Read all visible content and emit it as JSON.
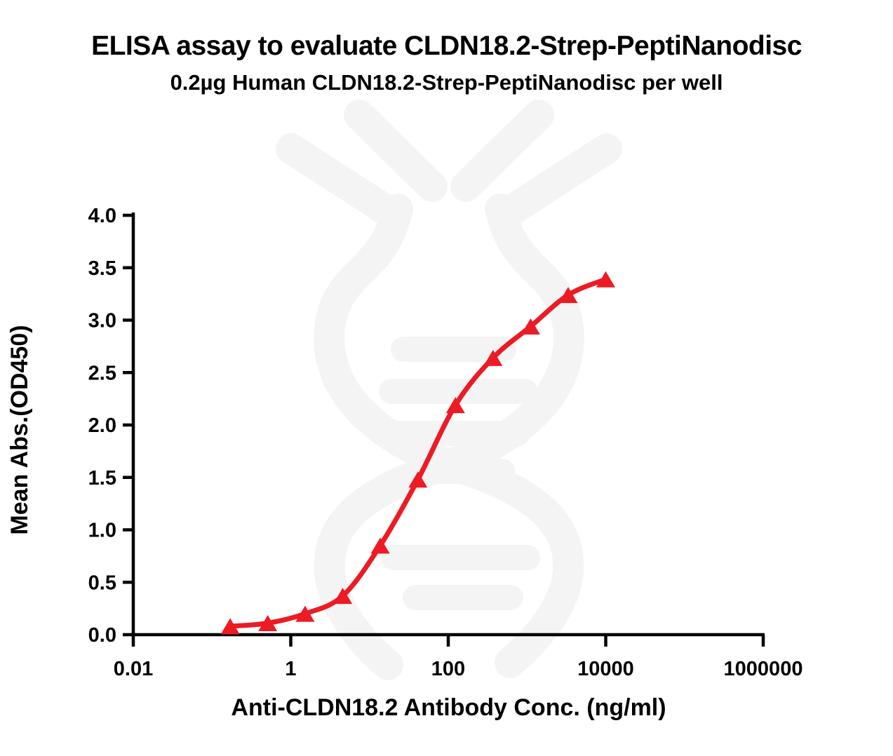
{
  "title": "ELISA assay to evaluate CLDN18.2-Strep-PeptiNanodisc",
  "subtitle": "0.2µg Human CLDN18.2-Strep-PeptiNanodisc per well",
  "chart_data": {
    "type": "scatter",
    "title": "ELISA assay to evaluate CLDN18.2-Strep-PeptiNanodisc",
    "subtitle": "0.2µg Human CLDN18.2-Strep-PeptiNanodisc per well",
    "xlabel": "Anti-CLDN18.2 Antibody Conc. (ng/ml)",
    "ylabel": "Mean Abs.(OD450)",
    "x_scale": "log10",
    "xlim": [
      0.01,
      1000000
    ],
    "ylim": [
      0.0,
      4.0
    ],
    "grid": false,
    "legend": "none",
    "x_ticks": [
      {
        "value": 0.01,
        "label": "0.01"
      },
      {
        "value": 1,
        "label": "1"
      },
      {
        "value": 100,
        "label": "100"
      },
      {
        "value": 10000,
        "label": "10000"
      },
      {
        "value": 1000000,
        "label": "1000000"
      }
    ],
    "y_ticks": [
      {
        "value": 0.0,
        "label": "0.0"
      },
      {
        "value": 0.5,
        "label": "0.5"
      },
      {
        "value": 1.0,
        "label": "1.0"
      },
      {
        "value": 1.5,
        "label": "1.5"
      },
      {
        "value": 2.0,
        "label": "2.0"
      },
      {
        "value": 2.5,
        "label": "2.5"
      },
      {
        "value": 3.0,
        "label": "3.0"
      },
      {
        "value": 3.5,
        "label": "3.5"
      },
      {
        "value": 4.0,
        "label": "4.0"
      }
    ],
    "points": {
      "marker": "triangle-up",
      "x": [
        0.17,
        0.51,
        1.52,
        4.57,
        13.7,
        41.2,
        123.5,
        370.4,
        1111,
        3333,
        10000
      ],
      "y": [
        0.08,
        0.11,
        0.2,
        0.37,
        0.85,
        1.48,
        2.19,
        2.64,
        2.94,
        3.24,
        3.39
      ]
    },
    "curve": "sigmoid-fit-through-points",
    "colors": {
      "series": "#ec1b24",
      "axis": "#000000",
      "text": "#000000",
      "watermark": "#f4f4f4"
    }
  }
}
